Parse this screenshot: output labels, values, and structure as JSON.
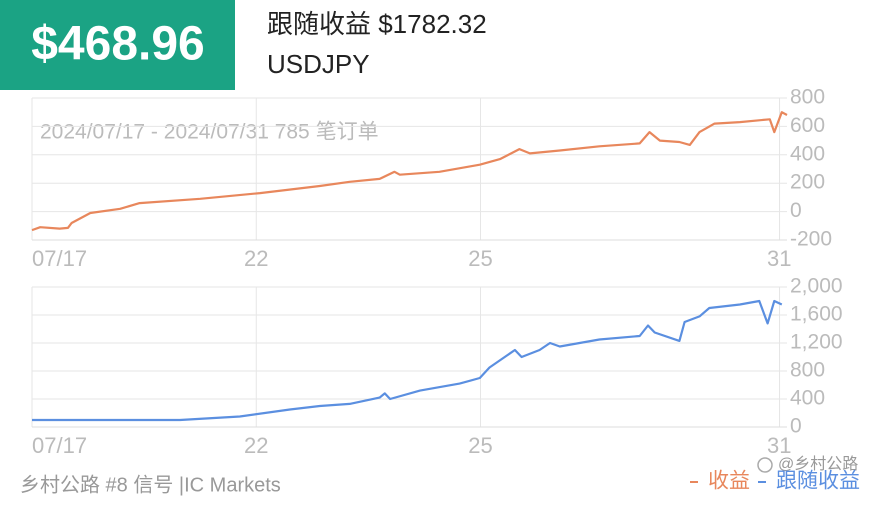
{
  "header": {
    "badge": "$468.96",
    "title": "跟随收益 $1782.32",
    "symbol": "USDJPY"
  },
  "chart_data": [
    {
      "type": "line",
      "annotation": "2024/07/17 - 2024/07/31 785 笔订单",
      "xlim": [
        0,
        10.1
      ],
      "xticks": [
        {
          "value": 0,
          "label": "07/17"
        },
        {
          "value": 3,
          "label": "22"
        },
        {
          "value": 6,
          "label": "25"
        },
        {
          "value": 10,
          "label": "31"
        }
      ],
      "ylim": [
        -200,
        800
      ],
      "yticks": [
        800,
        600,
        400,
        200,
        0,
        -200
      ],
      "grid": true,
      "series": [
        {
          "name": "收益",
          "color": "#e8875c",
          "x": [
            0,
            0.11,
            0.37,
            0.48,
            0.53,
            0.78,
            1.18,
            1.44,
            2.25,
            3.05,
            3.85,
            4.25,
            4.65,
            4.85,
            4.92,
            5.45,
            5.99,
            6.26,
            6.52,
            6.66,
            7.06,
            7.59,
            8.13,
            8.26,
            8.4,
            8.66,
            8.8,
            8.93,
            9.13,
            9.47,
            9.87,
            9.93,
            10.03,
            10.1
          ],
          "values": [
            -130,
            -110,
            -120,
            -115,
            -80,
            -10,
            20,
            60,
            90,
            130,
            180,
            210,
            230,
            280,
            260,
            280,
            330,
            370,
            440,
            410,
            430,
            460,
            480,
            560,
            500,
            490,
            470,
            560,
            620,
            630,
            650,
            560,
            700,
            680
          ]
        }
      ]
    },
    {
      "type": "line",
      "xlim": [
        0,
        10.1
      ],
      "xticks": [
        {
          "value": 0,
          "label": "07/17"
        },
        {
          "value": 3,
          "label": "22"
        },
        {
          "value": 6,
          "label": "25"
        },
        {
          "value": 10,
          "label": "31"
        }
      ],
      "ylim": [
        0,
        2000
      ],
      "yticks": [
        {
          "value": 2000,
          "label": "2,000"
        },
        {
          "value": 1600,
          "label": "1,600"
        },
        {
          "value": 1200,
          "label": "1,200"
        },
        800,
        400,
        0
      ],
      "grid": true,
      "series": [
        {
          "name": "跟随收益",
          "color": "#5b8fe0",
          "x": [
            0,
            1.98,
            2.78,
            3.45,
            3.85,
            4.25,
            4.65,
            4.72,
            4.79,
            5.19,
            5.72,
            5.99,
            6.12,
            6.46,
            6.55,
            6.79,
            6.93,
            7.06,
            7.59,
            8.13,
            8.24,
            8.33,
            8.66,
            8.73,
            8.93,
            9.06,
            9.47,
            9.73,
            9.84,
            9.93,
            10.03
          ],
          "values": [
            100,
            100,
            150,
            250,
            300,
            330,
            420,
            480,
            400,
            520,
            620,
            700,
            850,
            1100,
            1000,
            1100,
            1200,
            1150,
            1250,
            1300,
            1450,
            1350,
            1230,
            1500,
            1580,
            1700,
            1750,
            1800,
            1480,
            1800,
            1750
          ]
        }
      ]
    }
  ],
  "footer": {
    "source": "乡村公路 #8 信号 |IC Markets",
    "watermark": "@乡村公路"
  }
}
